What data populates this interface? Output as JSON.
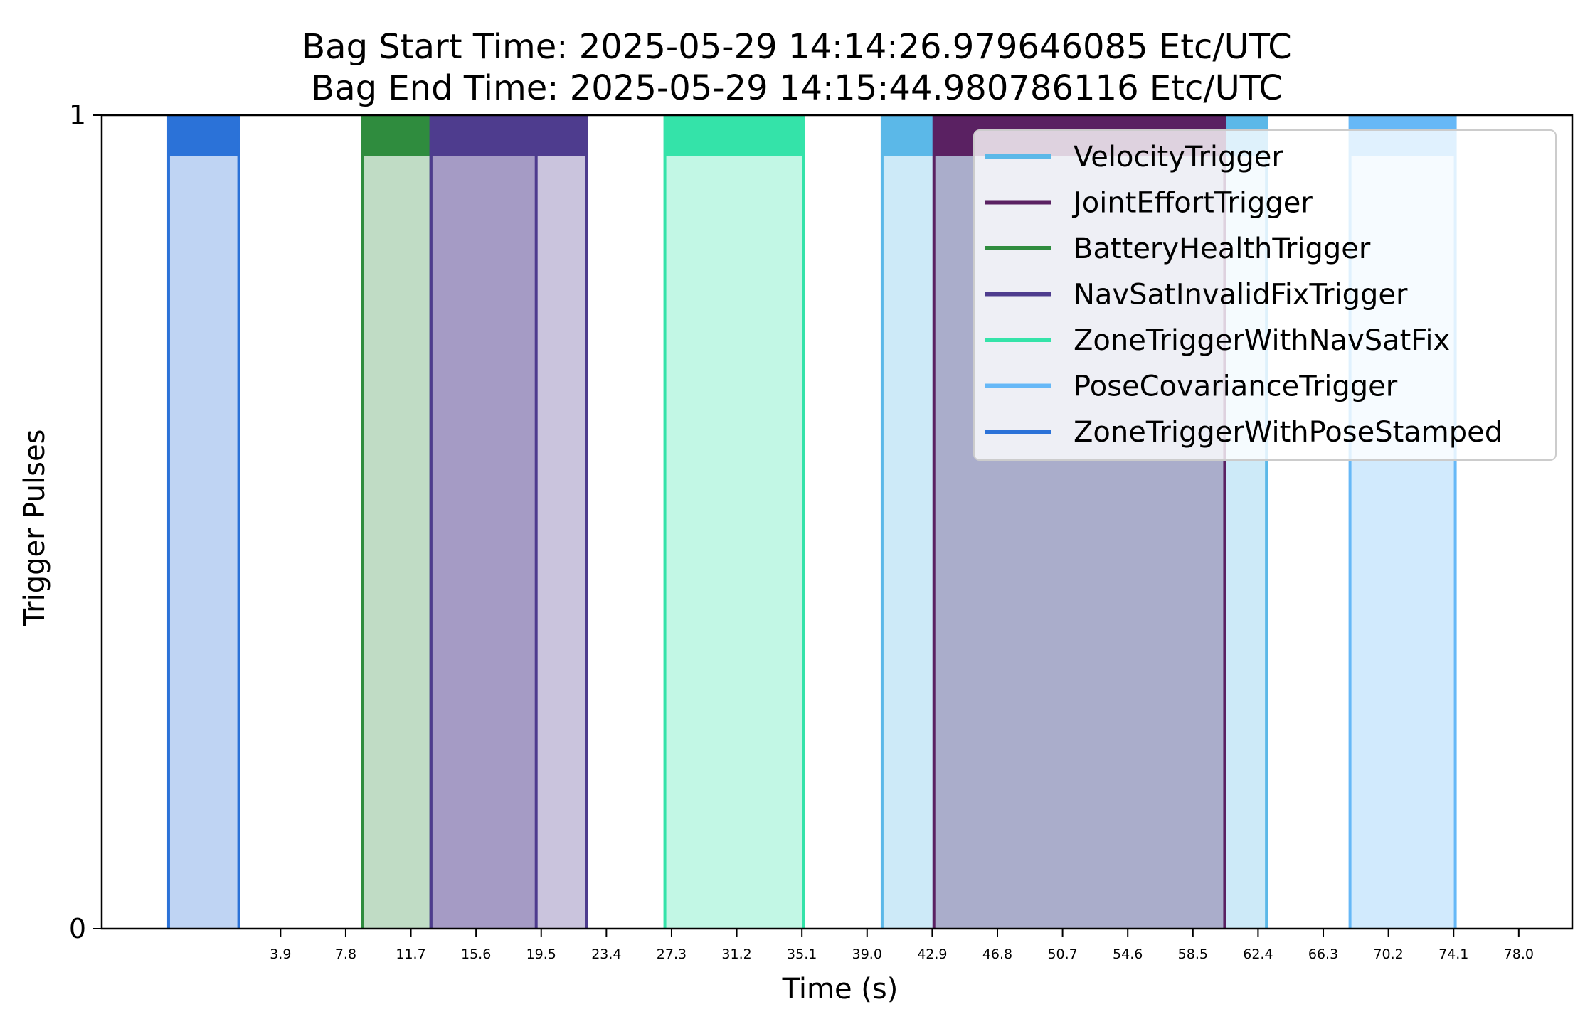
{
  "chart_data": {
    "type": "area",
    "title_lines": [
      "Bag Start Time: 2025-05-29 14:14:26.979646085 Etc/UTC",
      "Bag End Time: 2025-05-29 14:15:44.980786116 Etc/UTC"
    ],
    "xlabel": "Time (s)",
    "ylabel": "Trigger Pulses",
    "xlim": [
      -6.8,
      81.2
    ],
    "ylim": [
      0,
      1
    ],
    "x_ticks": [
      3.9,
      7.8,
      11.7,
      15.6,
      19.5,
      23.4,
      27.3,
      31.2,
      35.1,
      39.0,
      42.9,
      46.8,
      50.7,
      54.6,
      58.5,
      62.4,
      66.3,
      70.2,
      74.1,
      78.0
    ],
    "x_tick_labels": [
      "3.9",
      "7.8",
      "11.7",
      "15.6",
      "19.5",
      "23.4",
      "27.3",
      "31.2",
      "35.1",
      "39.0",
      "42.9",
      "46.8",
      "50.7",
      "54.6",
      "58.5",
      "62.4",
      "66.3",
      "70.2",
      "74.1",
      "78.0"
    ],
    "y_ticks": [
      0,
      1
    ],
    "y_tick_labels": [
      "0",
      "1"
    ],
    "legend_position": "upper-right",
    "grid": false,
    "series": [
      {
        "name": "VelocityTrigger",
        "color": "#5bb8e8",
        "pulses": [
          [
            39.9,
            62.9
          ]
        ]
      },
      {
        "name": "JointEffortTrigger",
        "color": "#5a2162",
        "pulses": [
          [
            43.0,
            60.4
          ]
        ]
      },
      {
        "name": "BatteryHealthTrigger",
        "color": "#2f8c3e",
        "pulses": [
          [
            8.8,
            12.9
          ]
        ]
      },
      {
        "name": "NavSatInvalidFixTrigger",
        "color": "#4e3c8e",
        "pulses": [
          [
            12.9,
            19.2
          ],
          [
            12.9,
            22.2
          ]
        ]
      },
      {
        "name": "ZoneTriggerWithNavSatFix",
        "color": "#34e3a9",
        "pulses": [
          [
            26.9,
            35.2
          ]
        ]
      },
      {
        "name": "PoseCovarianceTrigger",
        "color": "#66b8f7",
        "pulses": [
          [
            67.9,
            74.2
          ]
        ]
      },
      {
        "name": "ZoneTriggerWithPoseStamped",
        "color": "#2b72d8",
        "pulses": [
          [
            -2.8,
            1.4
          ]
        ]
      }
    ]
  }
}
